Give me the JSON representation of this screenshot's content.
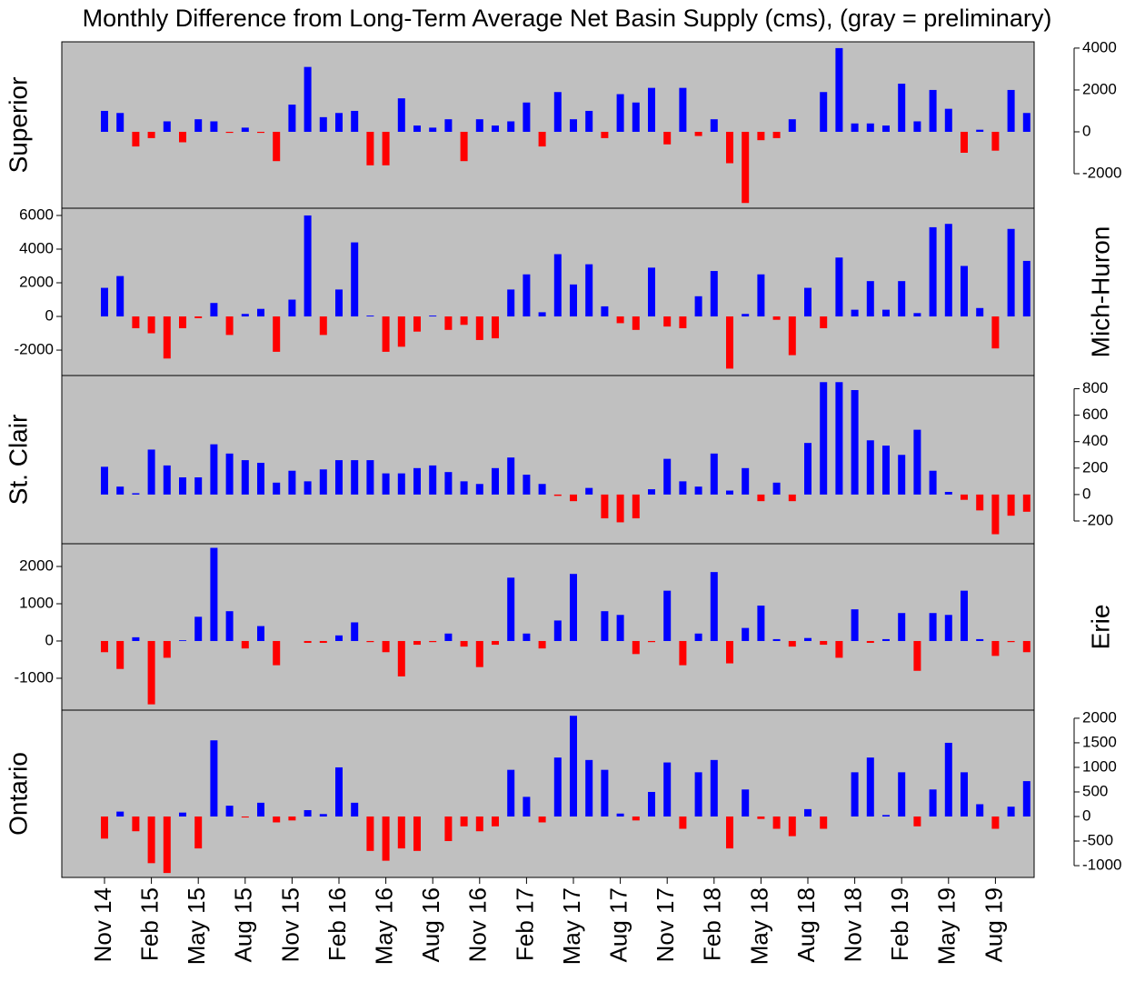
{
  "chart_data": {
    "type": "bar",
    "title": "Monthly Difference from Long-Term Average Net Basin Supply (cms), (gray = preliminary)",
    "positive_color": "#0000ff",
    "negative_color": "#ff0000",
    "background": "#c0c0c0",
    "categories": [
      "Nov 14",
      null,
      null,
      "Feb 15",
      null,
      null,
      "May 15",
      null,
      null,
      "Aug 15",
      null,
      null,
      "Nov 15",
      null,
      null,
      "Feb 16",
      null,
      null,
      "May 16",
      null,
      null,
      "Aug 16",
      null,
      null,
      "Nov 16",
      null,
      null,
      "Feb 17",
      null,
      null,
      "May 17",
      null,
      null,
      "Aug 17",
      null,
      null,
      "Nov 17",
      null,
      null,
      "Feb 18",
      null,
      null,
      "May 18",
      null,
      null,
      "Aug 18",
      null,
      null,
      "Nov 18",
      null,
      null,
      "Feb 19",
      null,
      null,
      "May 19",
      null,
      null,
      "Aug 19",
      null,
      null
    ],
    "panels": [
      {
        "name": "Superior",
        "axis_side": "right",
        "ylim": [
          -3650,
          4300
        ],
        "yticks": [
          -2000,
          0,
          2000,
          4000
        ],
        "values": [
          1000,
          900,
          -700,
          -300,
          500,
          -500,
          600,
          500,
          -50,
          200,
          -50,
          -1400,
          1300,
          3100,
          700,
          900,
          1000,
          -1600,
          -1600,
          1600,
          300,
          200,
          600,
          -1400,
          600,
          300,
          500,
          1400,
          -700,
          1900,
          600,
          1000,
          -300,
          1800,
          1400,
          2100,
          -600,
          2100,
          -200,
          600,
          -1500,
          -3400,
          -400,
          -300,
          600,
          0,
          1900,
          4000,
          400,
          400,
          300,
          2300,
          500,
          2000,
          1100,
          -1000,
          100,
          -900,
          2000,
          900
        ]
      },
      {
        "name": "Mich-Huron",
        "axis_side": "left",
        "ylim": [
          -3510,
          6430
        ],
        "yticks": [
          -2000,
          0,
          2000,
          4000,
          6000
        ],
        "values": [
          1700,
          2400,
          -700,
          -1000,
          -2500,
          -700,
          -100,
          800,
          -1100,
          150,
          450,
          -2100,
          1000,
          6000,
          -1100,
          1600,
          4400,
          50,
          -2100,
          -1800,
          -900,
          50,
          -800,
          -500,
          -1400,
          -1300,
          1600,
          2500,
          250,
          3700,
          1900,
          3100,
          600,
          -400,
          -800,
          2900,
          -600,
          -700,
          1200,
          2700,
          -3100,
          150,
          2500,
          -200,
          -2300,
          1700,
          -700,
          3500,
          400,
          2100,
          400,
          2100,
          200,
          5300,
          5500,
          3000,
          500,
          -1900,
          5200,
          3300
        ]
      },
      {
        "name": "St. Clair",
        "axis_side": "right",
        "ylim": [
          -372,
          900
        ],
        "yticks": [
          -200,
          0,
          200,
          400,
          600,
          800
        ],
        "values": [
          210,
          60,
          10,
          340,
          220,
          130,
          130,
          380,
          310,
          260,
          240,
          90,
          180,
          100,
          190,
          260,
          260,
          260,
          160,
          160,
          200,
          220,
          170,
          100,
          80,
          200,
          280,
          150,
          80,
          -10,
          -50,
          50,
          -180,
          -210,
          -180,
          40,
          270,
          100,
          60,
          310,
          30,
          200,
          -50,
          90,
          -50,
          390,
          850,
          850,
          790,
          410,
          370,
          300,
          490,
          180,
          20,
          -40,
          -120,
          -300,
          -160,
          -130
        ]
      },
      {
        "name": "Erie",
        "axis_side": "left",
        "ylim": [
          -1855,
          2610
        ],
        "yticks": [
          -1000,
          0,
          1000,
          2000
        ],
        "values": [
          -300,
          -750,
          100,
          -1700,
          -450,
          20,
          650,
          2500,
          800,
          -200,
          400,
          -650,
          0,
          -50,
          -50,
          150,
          500,
          -30,
          -300,
          -950,
          -100,
          -30,
          200,
          -150,
          -700,
          -100,
          1700,
          200,
          -200,
          550,
          1800,
          0,
          800,
          700,
          -350,
          -30,
          1350,
          -650,
          200,
          1850,
          -600,
          350,
          950,
          50,
          -150,
          80,
          -100,
          -450,
          850,
          -50,
          50,
          750,
          -800,
          750,
          700,
          1350,
          50,
          -400,
          -30,
          -300
        ]
      },
      {
        "name": "Ontario",
        "axis_side": "right",
        "ylim": [
          -1240,
          2165
        ],
        "yticks": [
          -1000,
          -500,
          0,
          500,
          1000,
          1500,
          2000
        ],
        "values": [
          -450,
          100,
          -300,
          -950,
          -1150,
          80,
          -650,
          1550,
          220,
          -20,
          280,
          -120,
          -80,
          130,
          50,
          1000,
          280,
          -700,
          -900,
          -650,
          -700,
          0,
          -500,
          -200,
          -300,
          -200,
          950,
          400,
          -120,
          1200,
          2050,
          1150,
          950,
          60,
          -80,
          500,
          1100,
          -250,
          900,
          1150,
          -650,
          550,
          -50,
          -250,
          -400,
          150,
          -250,
          0,
          900,
          1200,
          30,
          900,
          -200,
          550,
          1500,
          900,
          250,
          -250,
          200,
          720
        ]
      }
    ]
  }
}
